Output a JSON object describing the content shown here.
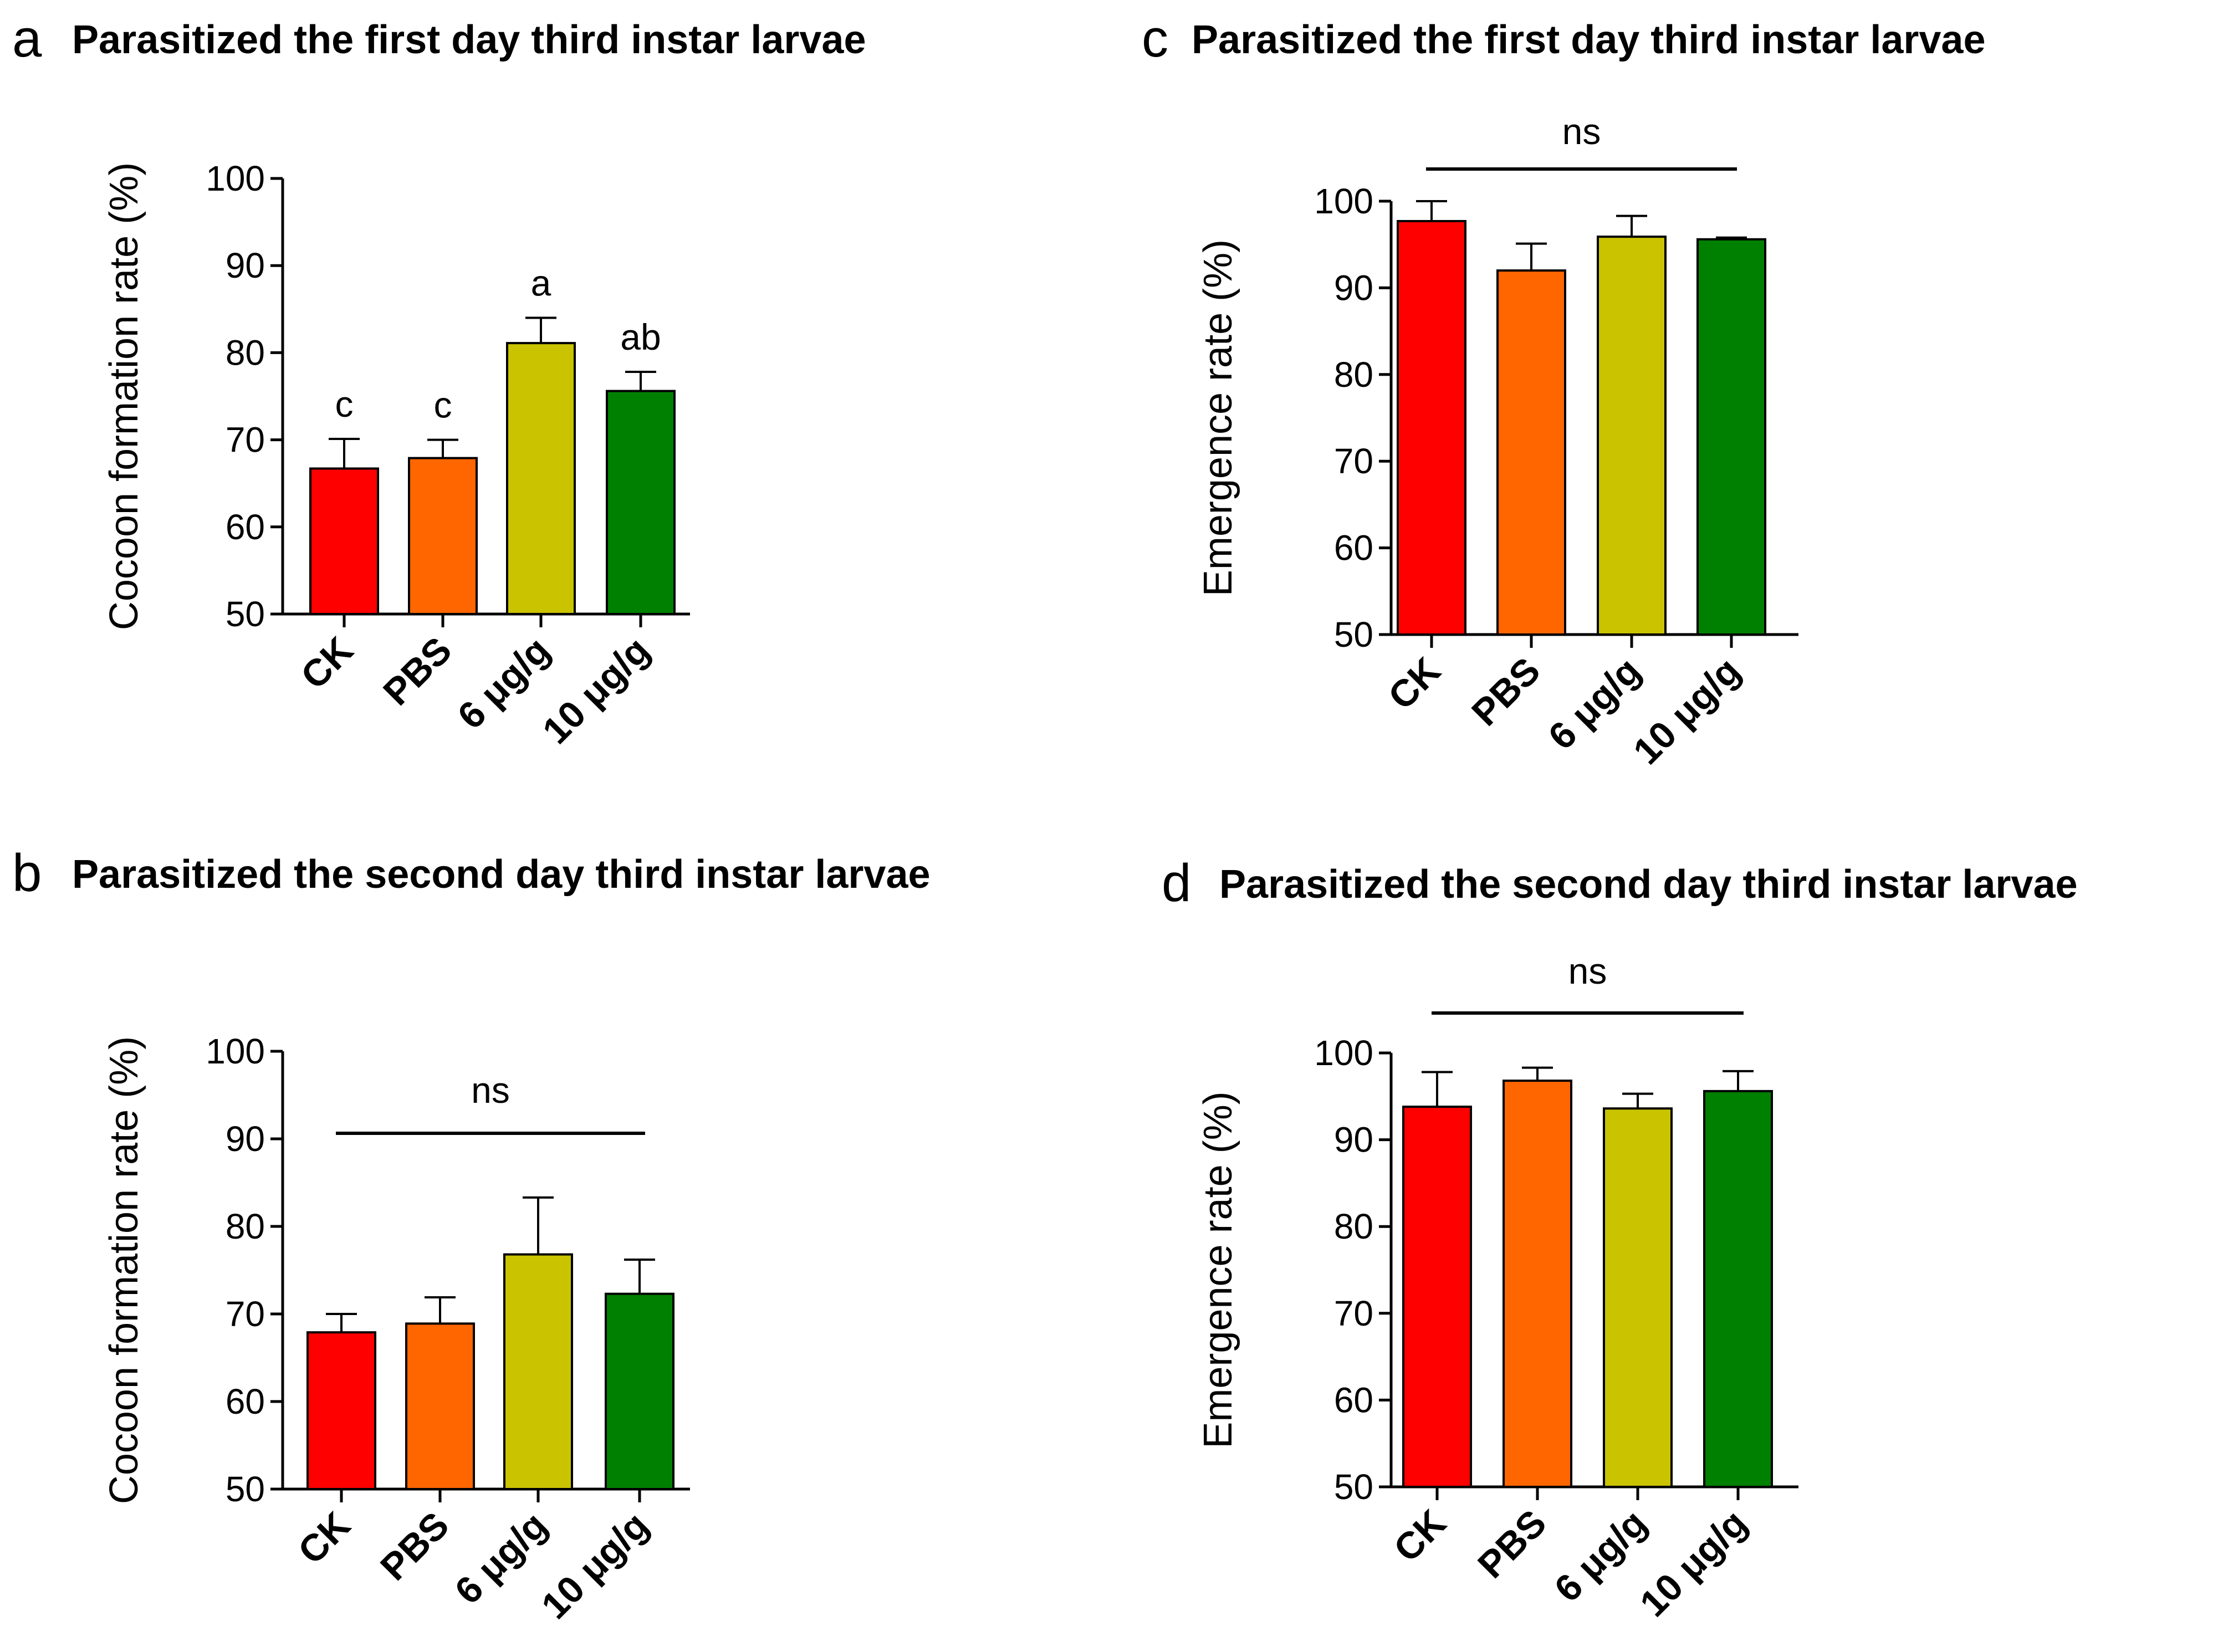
{
  "colors": {
    "CK": "#ff0000",
    "PBS": "#ff6600",
    "6 μg/g": "#c9c300",
    "10 μg/g": "#008000"
  },
  "chart_data": [
    {
      "id": "a",
      "panel_label": "a",
      "title": "Parasitized the first day third instar larvae",
      "type": "bar",
      "categories": [
        "CK",
        "PBS",
        "6 μg/g",
        "10 μg/g"
      ],
      "values": [
        66.7,
        67.9,
        81.1,
        75.6
      ],
      "errors": [
        3.4,
        2.1,
        2.9,
        2.2
      ],
      "letters": [
        "c",
        "c",
        "a",
        "ab"
      ],
      "ylabel": "Cocoon formation rate (%)",
      "ylim": [
        50,
        100
      ],
      "yticks": [
        50,
        60,
        70,
        80,
        90,
        100
      ],
      "ns": null
    },
    {
      "id": "b",
      "panel_label": "b",
      "title": "Parasitized the second day third instar larvae",
      "type": "bar",
      "categories": [
        "CK",
        "PBS",
        "6 μg/g",
        "10 μg/g"
      ],
      "values": [
        67.9,
        68.9,
        76.8,
        72.3
      ],
      "errors": [
        2.1,
        3.0,
        6.5,
        3.9
      ],
      "letters": null,
      "ylabel": "Cocoon formation rate  (%)",
      "ylim": [
        50,
        100
      ],
      "yticks": [
        50,
        60,
        70,
        80,
        90,
        100
      ],
      "ns": "ns"
    },
    {
      "id": "c",
      "panel_label": "c",
      "title": "Parasitized the first day third instar larvae",
      "type": "bar",
      "categories": [
        "CK",
        "PBS",
        "6 μg/g",
        "10 μg/g"
      ],
      "values": [
        97.7,
        92.0,
        95.9,
        95.6
      ],
      "errors": [
        2.3,
        3.1,
        2.4,
        0.2
      ],
      "letters": null,
      "ylabel": "Emergence rate  (%)",
      "ylim": [
        50,
        100
      ],
      "yticks": [
        50,
        60,
        70,
        80,
        90,
        100
      ],
      "ns": "ns"
    },
    {
      "id": "d",
      "panel_label": "d",
      "title": "Parasitized the second day third instar larvae",
      "type": "bar",
      "categories": [
        "CK",
        "PBS",
        "6 μg/g",
        "10 μg/g"
      ],
      "values": [
        93.8,
        96.8,
        93.6,
        95.6
      ],
      "errors": [
        4.0,
        1.5,
        1.7,
        2.3
      ],
      "letters": null,
      "ylabel": "Emergence rate  (%)",
      "ylim": [
        50,
        100
      ],
      "yticks": [
        50,
        60,
        70,
        80,
        90,
        100
      ],
      "ns": "ns"
    }
  ]
}
